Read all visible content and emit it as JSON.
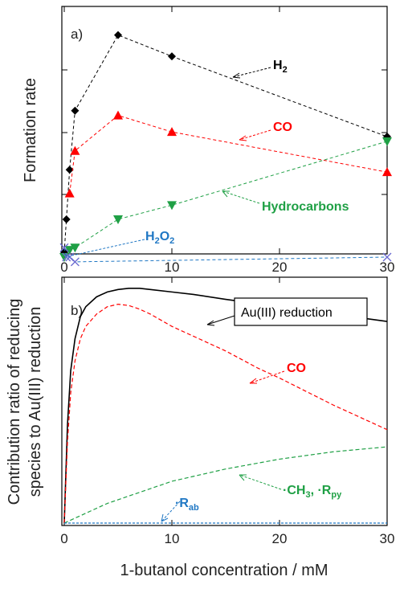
{
  "chart_data": [
    {
      "type": "line",
      "panel_label": "a)",
      "ylabel": "Formation rate",
      "xlim": [
        0,
        30
      ],
      "y_tick_labels_shown": false,
      "x_ticks": [
        0,
        10,
        20,
        30
      ],
      "series": [
        {
          "name": "H2",
          "color": "#000000",
          "marker": "diamond",
          "x": [
            0,
            0.2,
            0.5,
            1,
            5,
            10,
            30
          ],
          "y": [
            0.02,
            0.16,
            0.37,
            0.62,
            0.94,
            0.85,
            0.51
          ]
        },
        {
          "name": "CO",
          "color": "#ff0000",
          "marker": "triangle-up",
          "x": [
            0.5,
            1,
            5,
            10,
            30
          ],
          "y": [
            0.27,
            0.45,
            0.6,
            0.53,
            0.36
          ]
        },
        {
          "name": "Hydrocarbons",
          "color": "#1fa045",
          "marker": "triangle-down",
          "x": [
            0,
            0.5,
            1,
            5,
            10,
            30
          ],
          "y": [
            0.0,
            0.03,
            0.04,
            0.16,
            0.22,
            0.49
          ]
        },
        {
          "name": "H2O2",
          "color": "#1f77c4",
          "marker": "x",
          "x": [
            0,
            0.2,
            0.5,
            1,
            30
          ],
          "y": [
            0.04,
            0.0,
            0.0,
            -0.02,
            0.0
          ]
        }
      ],
      "annotations": {
        "h2": {
          "main": "H",
          "sub": "2"
        },
        "co": "CO",
        "hydrocarbons": "Hydrocarbons",
        "h2o2": {
          "pre": "H",
          "sub1": "2",
          "mid": "O",
          "sub2": "2"
        }
      }
    },
    {
      "type": "line",
      "panel_label": "b)",
      "ylabel_line1": "Contribution  ratio of reducing",
      "ylabel_line2": "species to Au(III) reduction",
      "xlabel": "1-butanol concentration  / mM",
      "xlim": [
        0,
        30
      ],
      "x_ticks": [
        0,
        10,
        20,
        30
      ],
      "x_tick_labels": [
        "0",
        "10",
        "20",
        "30"
      ],
      "series": [
        {
          "name": "Au(III) reduction",
          "color": "#000000",
          "style": "solid",
          "x": [
            0,
            0.3,
            0.6,
            1,
            1.5,
            2,
            3,
            4,
            5,
            6,
            7,
            8,
            10,
            12,
            15,
            20,
            25,
            30
          ],
          "y": [
            0.0,
            0.4,
            0.62,
            0.75,
            0.84,
            0.88,
            0.92,
            0.94,
            0.95,
            0.955,
            0.955,
            0.95,
            0.94,
            0.93,
            0.91,
            0.88,
            0.85,
            0.82
          ]
        },
        {
          "name": "CO",
          "color": "#ff0000",
          "style": "dashed",
          "x": [
            0,
            0.3,
            0.6,
            1,
            1.5,
            2,
            3,
            4,
            5,
            6,
            7,
            8,
            10,
            12,
            15,
            18,
            20,
            25,
            30
          ],
          "y": [
            0.0,
            0.33,
            0.53,
            0.66,
            0.75,
            0.8,
            0.85,
            0.88,
            0.89,
            0.885,
            0.87,
            0.85,
            0.8,
            0.76,
            0.7,
            0.63,
            0.59,
            0.48,
            0.38
          ]
        },
        {
          "name": "CH3, Rpy",
          "color": "#1fa045",
          "style": "dashed",
          "x": [
            0,
            1,
            2,
            4,
            6,
            8,
            10,
            15,
            20,
            25,
            30
          ],
          "y": [
            0.0,
            0.02,
            0.04,
            0.08,
            0.11,
            0.14,
            0.17,
            0.22,
            0.26,
            0.29,
            0.31
          ]
        },
        {
          "name": "Rab",
          "color": "#1f77c4",
          "style": "dotted",
          "x": [
            0,
            30
          ],
          "y": [
            0.0,
            0.0
          ]
        }
      ],
      "annotations": {
        "au": "Au(III) reduction",
        "co": "CO",
        "ch3": {
          "a": "·CH",
          "a_sub": "3",
          "b": ", ·R",
          "b_sub": "py"
        },
        "rab": {
          "a": "·R",
          "a_sub": "ab"
        }
      }
    }
  ]
}
